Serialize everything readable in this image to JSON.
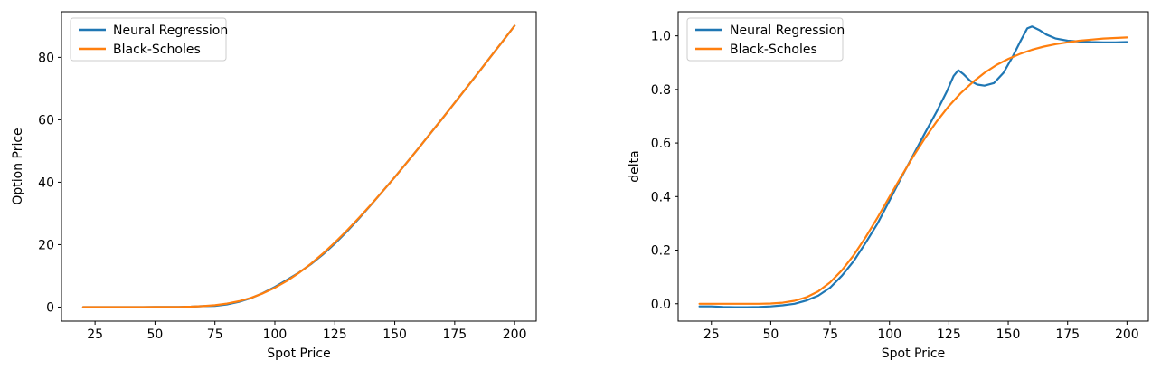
{
  "figure": {
    "background": "#ffffff"
  },
  "colors": {
    "neural": "#1f77b4",
    "black_scholes": "#ff7f0e",
    "spine": "#000000",
    "legend_border": "#cccccc"
  },
  "chart_data": [
    {
      "type": "line",
      "title": "",
      "xlabel": "Spot Price",
      "ylabel": "Option Price",
      "xlim": [
        11,
        209
      ],
      "ylim": [
        -4.5,
        94.6
      ],
      "xticks": [
        25,
        50,
        75,
        100,
        125,
        150,
        175,
        200
      ],
      "yticks": [
        0,
        20,
        40,
        60,
        80
      ],
      "ytick_format": "int",
      "grid": false,
      "legend_position": "upper left",
      "series": [
        {
          "name": "Neural Regression",
          "color": "#1f77b4",
          "x": [
            20,
            25,
            30,
            35,
            40,
            45,
            50,
            55,
            60,
            65,
            70,
            75,
            80,
            85,
            90,
            95,
            100,
            105,
            110,
            115,
            120,
            125,
            130,
            135,
            140,
            145,
            150,
            155,
            160,
            165,
            170,
            175,
            180,
            185,
            190,
            195,
            200
          ],
          "y": [
            0,
            0,
            0,
            0,
            0,
            0,
            0.01,
            0.02,
            0.05,
            0.13,
            0.31,
            0.41,
            0.87,
            1.68,
            2.86,
            4.49,
            6.45,
            8.68,
            11.04,
            13.73,
            16.83,
            20.32,
            24.17,
            28.32,
            32.64,
            37.13,
            41.64,
            46.26,
            50.97,
            55.74,
            60.56,
            65.43,
            70.31,
            75.25,
            80.19,
            85.13,
            90.11
          ]
        },
        {
          "name": "Black-Scholes",
          "color": "#ff7f0e",
          "x": [
            20,
            25,
            30,
            35,
            40,
            45,
            50,
            55,
            60,
            65,
            70,
            75,
            80,
            85,
            90,
            95,
            100,
            105,
            110,
            115,
            120,
            125,
            130,
            135,
            140,
            145,
            150,
            155,
            160,
            165,
            170,
            175,
            180,
            185,
            190,
            195,
            200
          ],
          "y": [
            0,
            0,
            0,
            0,
            0,
            0,
            0.01,
            0.02,
            0.05,
            0.13,
            0.31,
            0.61,
            1.12,
            1.88,
            2.96,
            4.39,
            6.2,
            8.38,
            10.94,
            13.88,
            17.13,
            20.67,
            24.47,
            28.52,
            32.74,
            37.13,
            41.64,
            46.26,
            50.97,
            55.74,
            60.56,
            65.43,
            70.31,
            75.25,
            80.19,
            85.13,
            90.11
          ]
        }
      ]
    },
    {
      "type": "line",
      "title": "",
      "xlabel": "Spot Price",
      "ylabel": "delta",
      "xlim": [
        11,
        209
      ],
      "ylim": [
        -0.065,
        1.09
      ],
      "xticks": [
        25,
        50,
        75,
        100,
        125,
        150,
        175,
        200
      ],
      "yticks": [
        0.0,
        0.2,
        0.4,
        0.6,
        0.8,
        1.0
      ],
      "ytick_format": "1dp",
      "grid": false,
      "legend_position": "upper left",
      "series": [
        {
          "name": "Neural Regression",
          "color": "#1f77b4",
          "x": [
            20,
            25,
            30,
            35,
            40,
            45,
            50,
            55,
            60,
            65,
            70,
            75,
            80,
            85,
            90,
            95,
            100,
            105,
            110,
            115,
            120,
            124,
            127,
            129,
            131,
            134,
            137,
            140,
            144,
            148,
            152,
            155,
            158,
            160,
            163,
            166,
            170,
            175,
            180,
            185,
            190,
            195,
            200
          ],
          "y": [
            -0.01,
            -0.01,
            -0.012,
            -0.013,
            -0.013,
            -0.012,
            -0.01,
            -0.006,
            0,
            0.012,
            0.03,
            0.06,
            0.105,
            0.16,
            0.228,
            0.3,
            0.385,
            0.472,
            0.555,
            0.638,
            0.72,
            0.79,
            0.85,
            0.872,
            0.858,
            0.832,
            0.818,
            0.814,
            0.824,
            0.862,
            0.925,
            0.978,
            1.028,
            1.035,
            1.022,
            1.005,
            0.99,
            0.982,
            0.979,
            0.977,
            0.976,
            0.976,
            0.977
          ]
        },
        {
          "name": "Black-Scholes",
          "color": "#ff7f0e",
          "x": [
            20,
            25,
            30,
            35,
            40,
            45,
            50,
            55,
            60,
            65,
            70,
            75,
            80,
            85,
            90,
            95,
            100,
            105,
            110,
            115,
            120,
            125,
            130,
            135,
            140,
            145,
            150,
            155,
            160,
            165,
            170,
            175,
            180,
            185,
            190,
            195,
            200
          ],
          "y": [
            0,
            0,
            0,
            0,
            0,
            0,
            0.001,
            0.004,
            0.011,
            0.024,
            0.046,
            0.08,
            0.125,
            0.182,
            0.249,
            0.322,
            0.399,
            0.476,
            0.55,
            0.619,
            0.682,
            0.738,
            0.786,
            0.827,
            0.862,
            0.891,
            0.914,
            0.933,
            0.948,
            0.96,
            0.969,
            0.976,
            0.982,
            0.986,
            0.99,
            0.992,
            0.994
          ]
        }
      ]
    }
  ]
}
